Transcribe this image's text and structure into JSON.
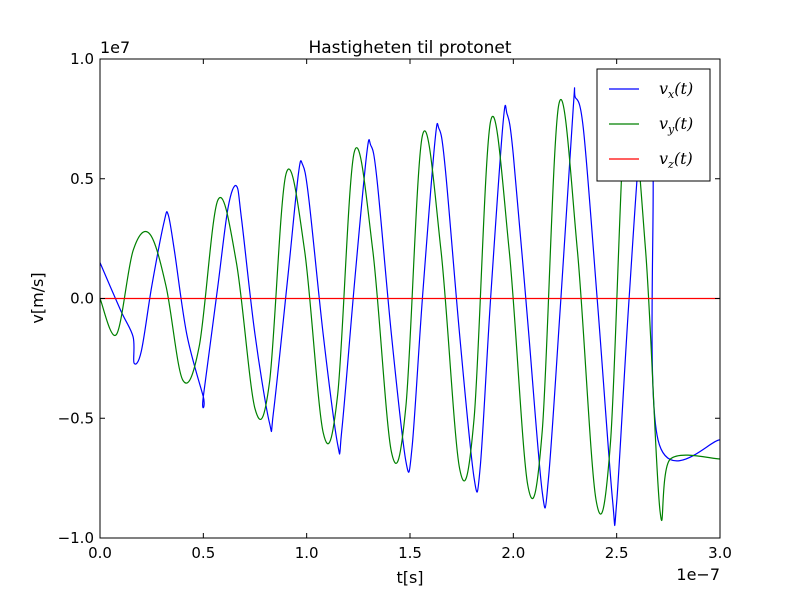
{
  "chart_data": {
    "type": "line",
    "title": "Hastigheten til protonet",
    "xlabel": "t[s]",
    "ylabel": "v[m/s]",
    "x_scale_label": "1e−7",
    "y_scale_label": "1e7",
    "x_unit_multiplier": 1e-07,
    "y_unit_multiplier": 10000000.0,
    "xlim": [
      0.0,
      3.0
    ],
    "ylim": [
      -1.0,
      1.0
    ],
    "xticks": [
      0.0,
      0.5,
      1.0,
      1.5,
      2.0,
      2.5,
      3.0
    ],
    "xtick_labels": [
      "0.0",
      "0.5",
      "1.0",
      "1.5",
      "2.0",
      "2.5",
      "3.0"
    ],
    "yticks": [
      -1.0,
      -0.5,
      0.0,
      0.5,
      1.0
    ],
    "ytick_labels": [
      "−1.0",
      "−0.5",
      "0.0",
      "0.5",
      "1.0"
    ],
    "grid": false,
    "legend_position": "top-right",
    "series": [
      {
        "name": "v_x(t)",
        "legend": {
          "base": "v",
          "sub": "x",
          "arg": "(t)"
        },
        "color": "#0000ff",
        "x": [
          0.0,
          0.1,
          0.16,
          0.165,
          0.2,
          0.25,
          0.31,
          0.33,
          0.36,
          0.42,
          0.5,
          0.5,
          0.57,
          0.62,
          0.66,
          0.685,
          0.75,
          0.82,
          0.84,
          0.91,
          0.96,
          0.98,
          1.01,
          1.08,
          1.15,
          1.17,
          1.23,
          1.29,
          1.31,
          1.34,
          1.41,
          1.48,
          1.51,
          1.56,
          1.62,
          1.64,
          1.67,
          1.74,
          1.81,
          1.84,
          1.89,
          1.95,
          1.97,
          2.0,
          2.07,
          2.14,
          2.17,
          2.23,
          2.29,
          2.3,
          2.34,
          2.41,
          2.48,
          2.5,
          2.56,
          2.63,
          2.675,
          2.7,
          3.0
        ],
        "y": [
          0.15,
          -0.05,
          -0.16,
          -0.27,
          -0.22,
          0.05,
          0.32,
          0.35,
          0.2,
          -0.15,
          -0.41,
          -0.41,
          0.05,
          0.38,
          0.47,
          0.33,
          -0.15,
          -0.52,
          -0.47,
          0.1,
          0.52,
          0.56,
          0.42,
          -0.15,
          -0.61,
          -0.55,
          0.05,
          0.6,
          0.64,
          0.5,
          -0.15,
          -0.68,
          -0.62,
          0.0,
          0.65,
          0.71,
          0.55,
          -0.15,
          -0.75,
          -0.7,
          0.0,
          0.73,
          0.77,
          0.6,
          -0.1,
          -0.81,
          -0.75,
          0.0,
          0.8,
          0.84,
          0.7,
          -0.05,
          -0.84,
          -0.85,
          0.0,
          0.81,
          0.6,
          -0.59,
          -0.59
        ]
      },
      {
        "name": "v_y(t)",
        "legend": {
          "base": "v",
          "sub": "y",
          "arg": "(t)"
        },
        "color": "#008000",
        "x": [
          0.0,
          0.08,
          0.16,
          0.24,
          0.32,
          0.4,
          0.48,
          0.57,
          0.66,
          0.75,
          0.82,
          0.9,
          0.99,
          1.08,
          1.15,
          1.23,
          1.32,
          1.41,
          1.48,
          1.56,
          1.65,
          1.74,
          1.81,
          1.89,
          1.98,
          2.07,
          2.14,
          2.22,
          2.31,
          2.4,
          2.47,
          2.55,
          2.64,
          2.71,
          2.76,
          3.0
        ],
        "y": [
          0.0,
          -0.15,
          0.2,
          0.27,
          0.05,
          -0.34,
          -0.2,
          0.41,
          0.15,
          -0.46,
          -0.35,
          0.52,
          0.2,
          -0.56,
          -0.4,
          0.61,
          0.2,
          -0.64,
          -0.45,
          0.68,
          0.2,
          -0.71,
          -0.5,
          0.74,
          0.2,
          -0.78,
          -0.55,
          0.81,
          0.2,
          -0.84,
          -0.6,
          0.85,
          0.2,
          -0.89,
          -0.67,
          -0.67
        ]
      },
      {
        "name": "v_z(t)",
        "legend": {
          "base": "v",
          "sub": "z",
          "arg": "(t)"
        },
        "color": "#ff0000",
        "x": [
          0.0,
          3.0
        ],
        "y": [
          0.0,
          0.0
        ]
      }
    ]
  }
}
